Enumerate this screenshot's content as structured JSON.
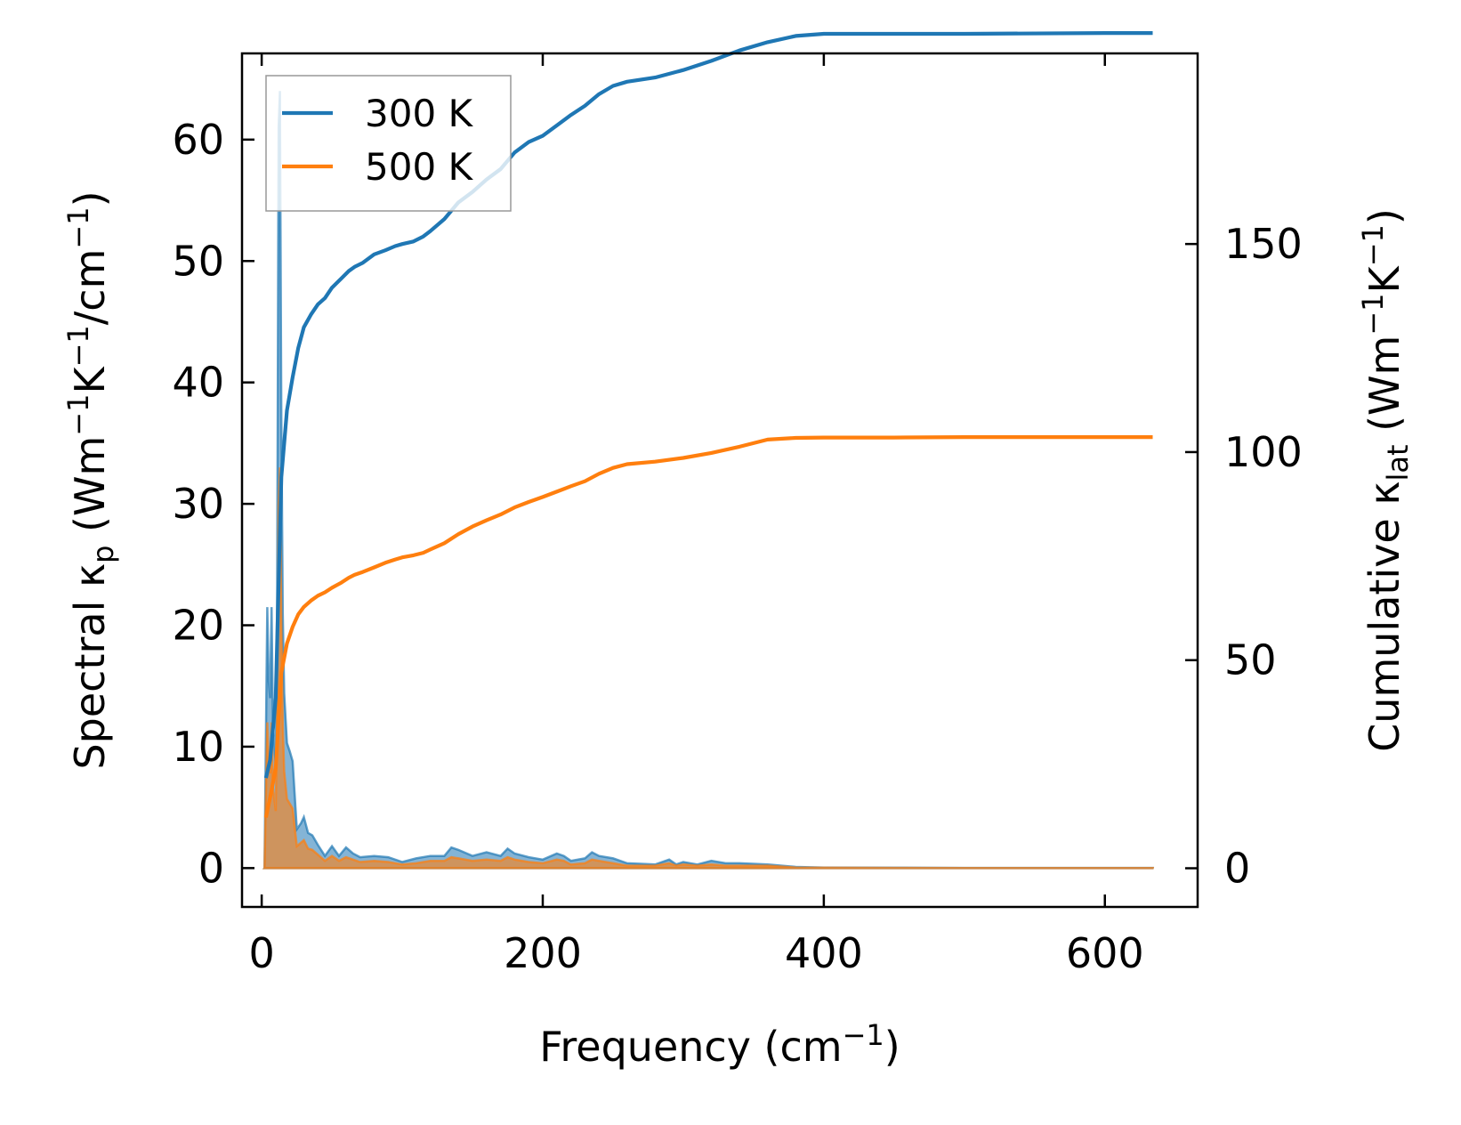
{
  "chart_data": {
    "type": "line",
    "xlabel": {
      "main": "Frequency (cm",
      "sup": "−1",
      "close": ")"
    },
    "ylabel_left": {
      "prefix": "Spectral κ",
      "sub": "p",
      "mid": " (Wm",
      "sup1": "−1",
      "k": "K",
      "sup2": "−1",
      "unit": "/cm",
      "sup3": "−1",
      "close": ")"
    },
    "ylabel_right": {
      "prefix": "Cumulative κ",
      "sub": "lat",
      "mid": " (Wm",
      "sup1": "−1",
      "k": "K",
      "sup2": "−1",
      "close": ")"
    },
    "xlim": [
      -14,
      666
    ],
    "ylim_left": [
      -3.2,
      67.1
    ],
    "ylim_right": [
      -9.3,
      195.8
    ],
    "x_ticks": [
      0,
      200,
      400,
      600
    ],
    "y_ticks_left": [
      0,
      10,
      20,
      30,
      40,
      50,
      60
    ],
    "y_ticks_right": [
      0,
      50,
      100,
      150
    ],
    "legend": {
      "position": "upper-left",
      "entries": [
        "300 K",
        "500 K"
      ]
    },
    "colors": {
      "300 K": "#1f77b4",
      "500 K": "#ff7f0e"
    },
    "series": [
      {
        "name": "300 K",
        "cumulative": {
          "x": [
            3,
            6,
            10,
            14,
            18,
            22,
            26,
            30,
            35,
            40,
            45,
            50,
            56,
            62,
            66,
            72,
            80,
            88,
            95,
            100,
            108,
            115,
            120,
            130,
            140,
            150,
            160,
            170,
            180,
            190,
            200,
            210,
            220,
            230,
            240,
            250,
            260,
            280,
            300,
            320,
            340,
            360,
            380,
            400,
            450,
            500,
            600,
            634
          ],
          "y": [
            21.7,
            26,
            41,
            94,
            110,
            118,
            125,
            130,
            133,
            135.5,
            137,
            139.5,
            141.5,
            143.5,
            144.5,
            145.5,
            147.5,
            148.5,
            149.5,
            150,
            150.6,
            151.8,
            153.1,
            156,
            160,
            162.5,
            165.5,
            168,
            172,
            174.5,
            176,
            178.5,
            181,
            183.2,
            186,
            188,
            189,
            190,
            191.8,
            194,
            196.5,
            198.5,
            200,
            200.5,
            200.5,
            200.5,
            200.7,
            200.7
          ]
        },
        "spectral": {
          "x": [
            2,
            4,
            5,
            6,
            7,
            8,
            10,
            11,
            12,
            13,
            14,
            15,
            16,
            18,
            20,
            22,
            25,
            28,
            30,
            33,
            36,
            40,
            45,
            50,
            55,
            60,
            65,
            70,
            80,
            90,
            100,
            110,
            120,
            130,
            135,
            140,
            150,
            160,
            170,
            175,
            180,
            190,
            200,
            210,
            215,
            220,
            230,
            235,
            240,
            250,
            260,
            280,
            290,
            295,
            300,
            310,
            320,
            330,
            340,
            360,
            380,
            400,
            450,
            500,
            600,
            634
          ],
          "y": [
            0,
            21.5,
            15.4,
            14,
            21.5,
            12,
            8.4,
            23,
            61,
            64,
            37,
            21,
            14.4,
            10.3,
            9.6,
            8.8,
            3.2,
            3.7,
            4.2,
            2.9,
            2.7,
            1.9,
            1.0,
            1.8,
            1.0,
            1.7,
            1.2,
            0.9,
            1.0,
            0.9,
            0.5,
            0.8,
            1.0,
            1.0,
            1.7,
            1.5,
            1.0,
            1.3,
            1.0,
            1.6,
            1.2,
            0.9,
            0.7,
            1.2,
            1.0,
            0.6,
            0.8,
            1.3,
            1.0,
            0.8,
            0.4,
            0.3,
            0.7,
            0.3,
            0.5,
            0.3,
            0.6,
            0.4,
            0.4,
            0.3,
            0.1,
            0.05,
            0.03,
            0.02,
            0.02,
            0.02
          ]
        }
      },
      {
        "name": "500 K",
        "cumulative": {
          "x": [
            3,
            6,
            10,
            14,
            18,
            22,
            26,
            30,
            35,
            40,
            45,
            50,
            56,
            62,
            66,
            72,
            80,
            88,
            95,
            100,
            108,
            115,
            120,
            130,
            140,
            150,
            160,
            170,
            180,
            190,
            200,
            210,
            220,
            230,
            240,
            250,
            260,
            280,
            300,
            320,
            340,
            360,
            380,
            400,
            450,
            500,
            600,
            634
          ],
          "y": [
            12.2,
            17,
            24,
            47,
            54,
            58,
            61,
            62.8,
            64.3,
            65.5,
            66.3,
            67.4,
            68.5,
            69.8,
            70.5,
            71.2,
            72.3,
            73.4,
            74.2,
            74.7,
            75.2,
            75.8,
            76.6,
            78.1,
            80.3,
            82.1,
            83.6,
            85,
            86.7,
            88,
            89.2,
            90.5,
            91.8,
            93,
            94.8,
            96.2,
            97.1,
            97.7,
            98.6,
            99.8,
            101.3,
            103,
            103.4,
            103.5,
            103.5,
            103.6,
            103.6,
            103.6
          ],
          "plot_values_in": "right_axis_units_scaled_to_left"
        },
        "spectral": {
          "x": [
            2,
            4,
            5,
            6,
            7,
            8,
            10,
            11,
            12,
            13,
            14,
            15,
            16,
            18,
            20,
            22,
            25,
            28,
            30,
            33,
            36,
            40,
            45,
            50,
            55,
            60,
            65,
            70,
            80,
            90,
            100,
            110,
            120,
            130,
            135,
            140,
            150,
            160,
            170,
            175,
            180,
            190,
            200,
            210,
            215,
            220,
            230,
            235,
            240,
            250,
            260,
            280,
            290,
            295,
            300,
            310,
            320,
            330,
            340,
            360,
            380,
            400,
            450,
            500,
            600,
            634
          ],
          "y": [
            0,
            12,
            8.6,
            7.8,
            12,
            6.7,
            4.7,
            12.8,
            30,
            33,
            20,
            11.7,
            8,
            5.7,
            5.3,
            4.9,
            1.8,
            2.1,
            2.3,
            1.6,
            1.5,
            1.1,
            0.6,
            1.0,
            0.6,
            0.9,
            0.7,
            0.5,
            0.6,
            0.5,
            0.3,
            0.4,
            0.6,
            0.6,
            0.9,
            0.8,
            0.6,
            0.7,
            0.6,
            0.9,
            0.7,
            0.5,
            0.4,
            0.7,
            0.6,
            0.3,
            0.4,
            0.7,
            0.6,
            0.4,
            0.2,
            0.2,
            0.4,
            0.2,
            0.3,
            0.2,
            0.3,
            0.2,
            0.2,
            0.2,
            0.05,
            0.03,
            0.02,
            0.01,
            0.01,
            0.01
          ]
        }
      }
    ]
  }
}
